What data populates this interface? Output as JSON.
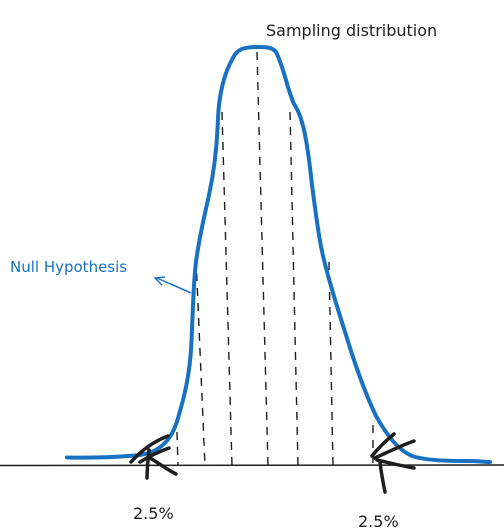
{
  "title": "Sampling distribution",
  "curve_label": "Null Hypothesis",
  "tail_labels": {
    "left": "2.5%",
    "right": "2.5%"
  },
  "colors": {
    "curve": "#1971c2",
    "ink": "#1e1e1e",
    "background": "#ffffff"
  }
}
